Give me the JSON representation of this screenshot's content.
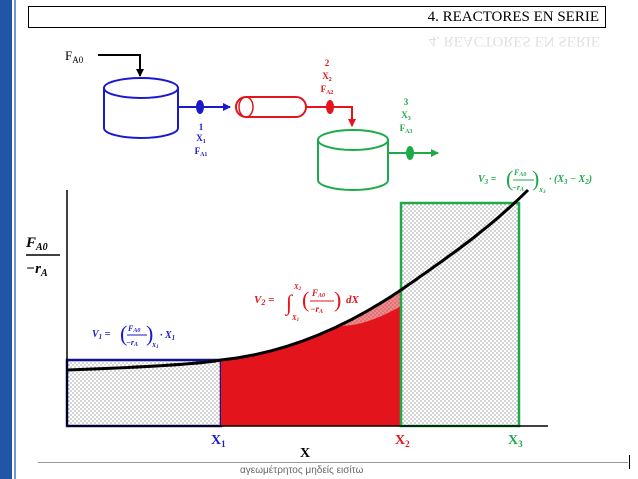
{
  "header": {
    "title": "4. REACTORES EN SERIE"
  },
  "footer": {
    "text": "αγεωμέτρητος μηδείς εισίτω"
  },
  "feed": {
    "label": "F",
    "sub": "A0"
  },
  "reactor1": {
    "num": "1",
    "x": "X",
    "x_sub": "1",
    "f": "F",
    "f_sub": "A1",
    "color": "#1a1acc"
  },
  "reactor2": {
    "num": "2",
    "x": "X",
    "x_sub": "2",
    "f": "F",
    "f_sub": "A2",
    "color": "#e3141b"
  },
  "reactor3": {
    "num": "3",
    "x": "X",
    "x_sub": "3",
    "f": "F",
    "f_sub": "A3",
    "color": "#1faa4a"
  },
  "plot": {
    "ylabel_top": "F",
    "ylabel_top_sub": "A0",
    "ylabel_bottom": "−r",
    "ylabel_bottom_sub": "A",
    "xlabel": "X",
    "x1": "X",
    "x1_sub": "1",
    "x2": "X",
    "x2_sub": "2",
    "x3": "X",
    "x3_sub": "3"
  },
  "equations": {
    "v1_lhs": "V",
    "v1_sub": "1",
    "v2_lhs": "V",
    "v2_sub": "2",
    "v3_lhs": "V",
    "v3_sub": "3"
  },
  "colors": {
    "blue": "#1a1acc",
    "red": "#e3141b",
    "green": "#1faa4a",
    "dark_blue": "#11118a"
  }
}
